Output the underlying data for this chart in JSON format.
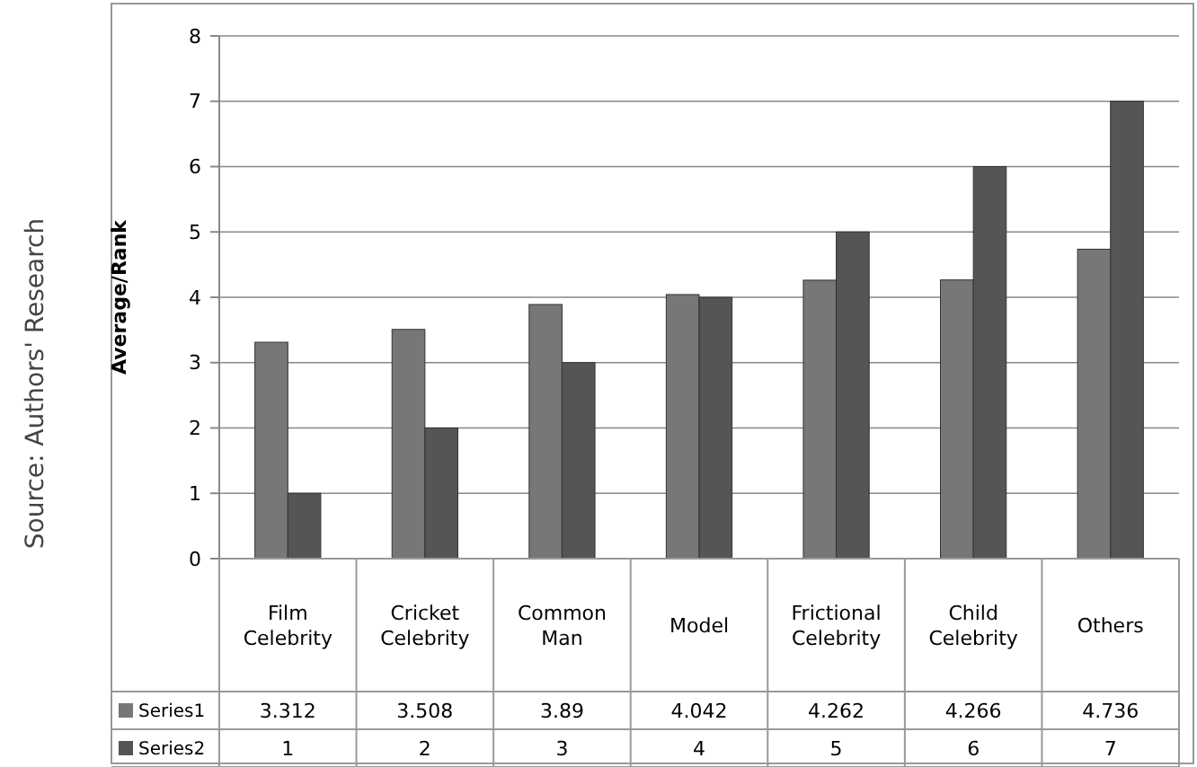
{
  "chart_data": {
    "type": "bar",
    "ylabel": "Average/Rank",
    "categories": [
      "Film Celebrity",
      "Cricket Celebrity",
      "Common Man",
      "Model",
      "Frictional Celebrity",
      "Child Celebrity",
      "Others"
    ],
    "series": [
      {
        "name": "Series1",
        "color": "#777777",
        "values": [
          3.312,
          3.508,
          3.89,
          4.042,
          4.262,
          4.266,
          4.736
        ]
      },
      {
        "name": "Series2",
        "color": "#555555",
        "values": [
          1,
          2,
          3,
          4,
          5,
          6,
          7
        ]
      }
    ],
    "ylim": [
      0,
      8
    ],
    "yticks": [
      0,
      1,
      2,
      3,
      4,
      5,
      6,
      7,
      8
    ],
    "grid": "y",
    "data_labels": true,
    "legend": "bottom left",
    "annotations": [
      "Source: Authors' Research"
    ]
  }
}
